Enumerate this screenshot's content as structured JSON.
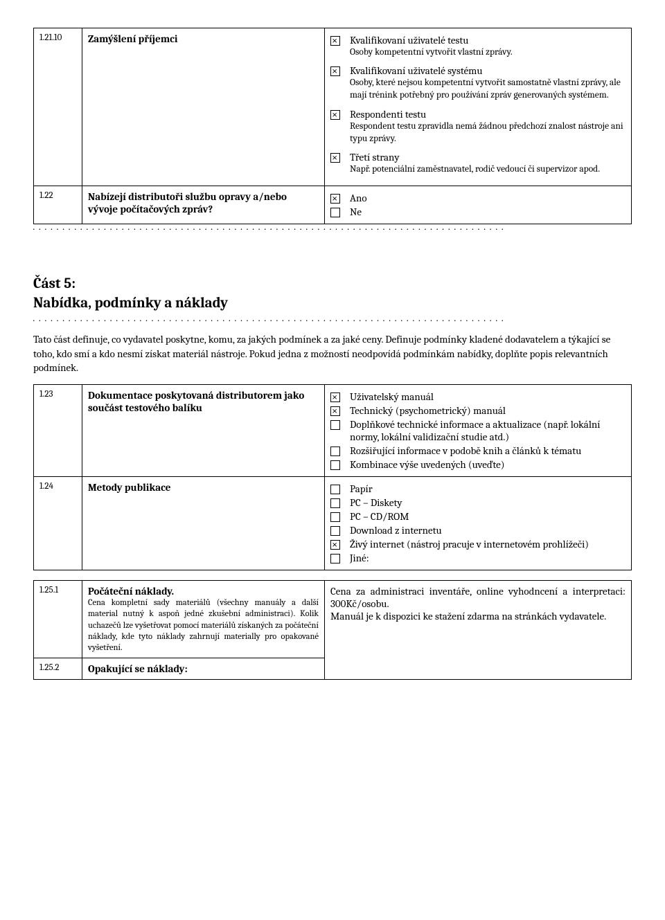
{
  "row_12110": {
    "num": "1.21.10",
    "label": "Zamýšlení příjemci",
    "options": [
      {
        "checked": true,
        "title": "Kvalifikovaní uživatelé testu",
        "sub": "Osoby kompetentní vytvořit vlastní zprávy."
      },
      {
        "checked": true,
        "title": "Kvalifikovaní uživatelé systému",
        "sub": "Osoby, které nejsou kompetentní vytvořit samostatně vlastní zprávy, ale mají trénink potřebný pro používání zpráv generovaných systémem."
      },
      {
        "checked": true,
        "title": "Respondenti testu",
        "sub": "Respondent testu zpravidla nemá žádnou předchozí znalost nástroje ani typu zprávy."
      },
      {
        "checked": true,
        "title": "Třetí strany",
        "sub": "Např. potenciální zaměstnavatel, rodič vedoucí či supervizor apod."
      }
    ]
  },
  "row_122": {
    "num": "1.22",
    "label": "Nabízejí distributoři službu opravy a/nebo vývoje počítačových zpráv?",
    "options": [
      {
        "checked": true,
        "title": "Ano"
      },
      {
        "checked": false,
        "title": "Ne"
      }
    ]
  },
  "section5": {
    "heading1": "Část 5:",
    "heading2": "Nabídka, podmínky a náklady",
    "intro": "Tato část definuje, co vydavatel poskytne, komu, za jakých podmínek a za jaké ceny. Definuje podmínky kladené dodavatelem a týkající se toho, kdo smí a kdo nesmí získat materiál nástroje. Pokud jedna z možností neodpovídá podmínkám nabídky, doplňte popis relevantních podmínek."
  },
  "row_123": {
    "num": "1.23",
    "label": "Dokumentace poskytovaná distributorem jako součást testového balíku",
    "options": [
      {
        "checked": true,
        "title": "Uživatelský manuál"
      },
      {
        "checked": true,
        "title": "Technický (psychometrický) manuál"
      },
      {
        "checked": false,
        "title": "Doplňkové technické informace a aktualizace (např. lokální normy, lokální validizační studie atd.)"
      },
      {
        "checked": false,
        "title": "Rozšiřující informace v podobě knih a článků k tématu"
      },
      {
        "checked": false,
        "title": "Kombinace výše uvedených (uveďte)"
      }
    ]
  },
  "row_124": {
    "num": "1.24",
    "label": "Metody publikace",
    "options": [
      {
        "checked": false,
        "title": "Papír"
      },
      {
        "checked": false,
        "title": "PC – Diskety"
      },
      {
        "checked": false,
        "title": "PC – CD/ROM"
      },
      {
        "checked": false,
        "title": "Download z internetu"
      },
      {
        "checked": true,
        "title": "Živý internet (nástroj pracuje v internetovém prohlížeči)"
      },
      {
        "checked": false,
        "title": "Jiné:"
      }
    ]
  },
  "row_1251": {
    "num": "1.25.1",
    "label": "Počáteční náklady.",
    "sub": "Cena kompletní sady materiálů (všechny manuály a další material nutný k aspoň jedné zkušební administraci). Kolik uchazečů lze vyšetřovat pomocí materiálů získaných za počáteční náklady, kde tyto náklady zahrnují materially pro opakované vyšetření.",
    "content": "Cena za administraci inventáře, online vyhodncení a interpretaci: 300Kč/osobu.\nManuál je k dispozici ke stažení zdarma na stránkách vydavatele."
  },
  "row_1252": {
    "num": "1.25.2",
    "label": "Opakující se náklady:"
  }
}
